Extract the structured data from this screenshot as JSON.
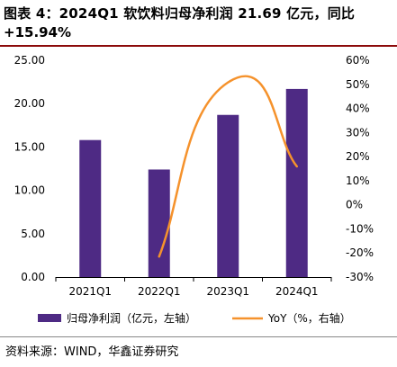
{
  "title": {
    "line1": "图表 4：2024Q1 软饮料归母净利润 21.69 亿元，同比",
    "line2": "+15.94%"
  },
  "source": "资料来源：WIND，华鑫证券研究",
  "colors": {
    "bar": "#4e2a84",
    "line": "#f5922c",
    "title_rule": "#8c0a0a"
  },
  "chart_data": {
    "type": "bar+line",
    "categories": [
      "2021Q1",
      "2022Q1",
      "2023Q1",
      "2024Q1"
    ],
    "series": [
      {
        "name": "归母净利润（亿元，左轴）",
        "type": "bar",
        "axis": "left",
        "values": [
          15.8,
          12.4,
          18.7,
          21.69
        ]
      },
      {
        "name": "YoY（%，右轴）",
        "type": "line",
        "axis": "right",
        "smooth": true,
        "values": [
          null,
          -21.5,
          50.8,
          15.94
        ]
      }
    ],
    "left_axis": {
      "min": 0,
      "max": 25,
      "step": 5,
      "ticks": [
        "25.00",
        "20.00",
        "15.00",
        "10.00",
        "5.00",
        "0.00"
      ]
    },
    "right_axis": {
      "min": -30,
      "max": 60,
      "step": 10,
      "ticks": [
        "60%",
        "50%",
        "40%",
        "30%",
        "20%",
        "10%",
        "0%",
        "-10%",
        "-20%",
        "-30%"
      ]
    },
    "legend_position": "bottom",
    "grid": false
  }
}
